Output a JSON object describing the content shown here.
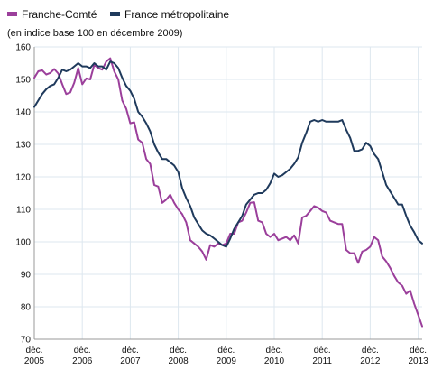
{
  "chart_data": {
    "type": "line",
    "subtitle": "(en indice base 100 en décembre 2009)",
    "x_range": [
      2005.917,
      2013.5
    ],
    "ylim": [
      70,
      160
    ],
    "y_ticks": [
      70,
      80,
      90,
      100,
      110,
      120,
      130,
      140,
      150,
      160
    ],
    "x_ticks": [
      {
        "value": 2005.917,
        "line1": "déc.",
        "line2": "2005"
      },
      {
        "value": 2006.917,
        "line1": "déc.",
        "line2": "2006"
      },
      {
        "value": 2007.917,
        "line1": "déc.",
        "line2": "2007"
      },
      {
        "value": 2008.917,
        "line1": "déc.",
        "line2": "2008"
      },
      {
        "value": 2009.917,
        "line1": "déc.",
        "line2": "2009"
      },
      {
        "value": 2010.917,
        "line1": "déc.",
        "line2": "2010"
      },
      {
        "value": 2011.917,
        "line1": "déc.",
        "line2": "2011"
      },
      {
        "value": 2012.917,
        "line1": "déc.",
        "line2": "2012"
      },
      {
        "value": 2013.917,
        "line1": "déc.",
        "line2": "2013"
      }
    ],
    "grid": true,
    "legend_position": "top-left",
    "series": [
      {
        "name": "Franche-Comté",
        "color": "#9b3f9b",
        "points": [
          [
            2005.917,
            150.5
          ],
          [
            2006.0,
            152.5
          ],
          [
            2006.083,
            152.8
          ],
          [
            2006.167,
            151.5
          ],
          [
            2006.25,
            152.0
          ],
          [
            2006.333,
            153.2
          ],
          [
            2006.417,
            151.8
          ],
          [
            2006.5,
            148.5
          ],
          [
            2006.583,
            145.5
          ],
          [
            2006.667,
            146.0
          ],
          [
            2006.75,
            149.0
          ],
          [
            2006.833,
            153.5
          ],
          [
            2006.917,
            148.5
          ],
          [
            2007.0,
            150.3
          ],
          [
            2007.083,
            150.0
          ],
          [
            2007.167,
            154.5
          ],
          [
            2007.25,
            153.5
          ],
          [
            2007.333,
            153.0
          ],
          [
            2007.417,
            155.5
          ],
          [
            2007.5,
            156.5
          ],
          [
            2007.583,
            152.5
          ],
          [
            2007.667,
            150.0
          ],
          [
            2007.75,
            143.5
          ],
          [
            2007.833,
            141.0
          ],
          [
            2007.917,
            136.5
          ],
          [
            2008.0,
            136.8
          ],
          [
            2008.083,
            131.5
          ],
          [
            2008.167,
            130.5
          ],
          [
            2008.25,
            125.5
          ],
          [
            2008.333,
            124.0
          ],
          [
            2008.417,
            117.5
          ],
          [
            2008.5,
            117.0
          ],
          [
            2008.583,
            112.0
          ],
          [
            2008.667,
            113.0
          ],
          [
            2008.75,
            114.5
          ],
          [
            2008.833,
            112.0
          ],
          [
            2008.917,
            110.0
          ],
          [
            2009.0,
            108.5
          ],
          [
            2009.083,
            106.0
          ],
          [
            2009.167,
            100.5
          ],
          [
            2009.25,
            99.5
          ],
          [
            2009.333,
            98.5
          ],
          [
            2009.417,
            97.0
          ],
          [
            2009.5,
            94.5
          ],
          [
            2009.583,
            99.0
          ],
          [
            2009.667,
            98.5
          ],
          [
            2009.75,
            99.5
          ],
          [
            2009.833,
            99.0
          ],
          [
            2009.917,
            99.5
          ],
          [
            2010.0,
            102.5
          ],
          [
            2010.083,
            102.5
          ],
          [
            2010.167,
            106.0
          ],
          [
            2010.25,
            106.5
          ],
          [
            2010.333,
            109.0
          ],
          [
            2010.417,
            112.0
          ],
          [
            2010.5,
            112.2
          ],
          [
            2010.583,
            106.5
          ],
          [
            2010.667,
            106.0
          ],
          [
            2010.75,
            102.5
          ],
          [
            2010.833,
            101.5
          ],
          [
            2010.917,
            102.5
          ],
          [
            2011.0,
            100.5
          ],
          [
            2011.083,
            101.0
          ],
          [
            2011.167,
            101.5
          ],
          [
            2011.25,
            100.5
          ],
          [
            2011.333,
            102.0
          ],
          [
            2011.417,
            99.5
          ],
          [
            2011.5,
            107.5
          ],
          [
            2011.583,
            108.0
          ],
          [
            2011.667,
            109.5
          ],
          [
            2011.75,
            111.0
          ],
          [
            2011.833,
            110.5
          ],
          [
            2011.917,
            109.5
          ],
          [
            2012.0,
            109.0
          ],
          [
            2012.083,
            106.5
          ],
          [
            2012.167,
            106.0
          ],
          [
            2012.25,
            105.5
          ],
          [
            2012.333,
            105.5
          ],
          [
            2012.417,
            97.5
          ],
          [
            2012.5,
            96.5
          ],
          [
            2012.583,
            96.5
          ],
          [
            2012.667,
            93.5
          ],
          [
            2012.75,
            97.0
          ],
          [
            2012.833,
            97.5
          ],
          [
            2012.917,
            98.5
          ],
          [
            2013.0,
            101.5
          ],
          [
            2013.083,
            100.5
          ],
          [
            2013.167,
            95.5
          ],
          [
            2013.25,
            94.0
          ],
          [
            2013.333,
            92.0
          ],
          [
            2013.417,
            89.5
          ],
          [
            2013.5,
            87.5
          ],
          [
            2013.583,
            86.5
          ],
          [
            2013.667,
            84.0
          ],
          [
            2013.75,
            85.0
          ],
          [
            2013.833,
            81.0
          ],
          [
            2013.917,
            77.5
          ],
          [
            2014.0,
            74.0
          ]
        ]
      },
      {
        "name": "France métropolitaine",
        "color": "#1f3a5c",
        "points": [
          [
            2005.917,
            141.5
          ],
          [
            2006.0,
            143.5
          ],
          [
            2006.083,
            145.5
          ],
          [
            2006.167,
            147.0
          ],
          [
            2006.25,
            148.0
          ],
          [
            2006.333,
            148.5
          ],
          [
            2006.417,
            150.5
          ],
          [
            2006.5,
            153.0
          ],
          [
            2006.583,
            152.5
          ],
          [
            2006.667,
            153.0
          ],
          [
            2006.75,
            154.0
          ],
          [
            2006.833,
            155.0
          ],
          [
            2006.917,
            154.0
          ],
          [
            2007.0,
            154.0
          ],
          [
            2007.083,
            153.5
          ],
          [
            2007.167,
            155.0
          ],
          [
            2007.25,
            154.0
          ],
          [
            2007.333,
            154.0
          ],
          [
            2007.417,
            153.0
          ],
          [
            2007.5,
            155.5
          ],
          [
            2007.583,
            155.0
          ],
          [
            2007.667,
            153.5
          ],
          [
            2007.75,
            150.5
          ],
          [
            2007.833,
            148.0
          ],
          [
            2007.917,
            146.5
          ],
          [
            2008.0,
            144.0
          ],
          [
            2008.083,
            140.0
          ],
          [
            2008.167,
            138.5
          ],
          [
            2008.25,
            136.5
          ],
          [
            2008.333,
            134.0
          ],
          [
            2008.417,
            130.0
          ],
          [
            2008.5,
            127.5
          ],
          [
            2008.583,
            125.5
          ],
          [
            2008.667,
            125.5
          ],
          [
            2008.75,
            124.5
          ],
          [
            2008.833,
            123.5
          ],
          [
            2008.917,
            121.5
          ],
          [
            2009.0,
            116.5
          ],
          [
            2009.083,
            113.5
          ],
          [
            2009.167,
            111.0
          ],
          [
            2009.25,
            107.5
          ],
          [
            2009.333,
            105.5
          ],
          [
            2009.417,
            103.5
          ],
          [
            2009.5,
            102.5
          ],
          [
            2009.583,
            102.0
          ],
          [
            2009.667,
            101.0
          ],
          [
            2009.75,
            100.0
          ],
          [
            2009.833,
            99.0
          ],
          [
            2009.917,
            98.5
          ],
          [
            2010.0,
            101.0
          ],
          [
            2010.083,
            104.0
          ],
          [
            2010.167,
            106.0
          ],
          [
            2010.25,
            108.0
          ],
          [
            2010.333,
            111.5
          ],
          [
            2010.417,
            113.0
          ],
          [
            2010.5,
            114.5
          ],
          [
            2010.583,
            115.0
          ],
          [
            2010.667,
            115.0
          ],
          [
            2010.75,
            116.0
          ],
          [
            2010.833,
            118.0
          ],
          [
            2010.917,
            121.0
          ],
          [
            2011.0,
            120.0
          ],
          [
            2011.083,
            120.5
          ],
          [
            2011.167,
            121.5
          ],
          [
            2011.25,
            122.5
          ],
          [
            2011.333,
            124.0
          ],
          [
            2011.417,
            126.0
          ],
          [
            2011.5,
            130.5
          ],
          [
            2011.583,
            133.5
          ],
          [
            2011.667,
            137.0
          ],
          [
            2011.75,
            137.5
          ],
          [
            2011.833,
            137.0
          ],
          [
            2011.917,
            137.5
          ],
          [
            2012.0,
            137.0
          ],
          [
            2012.083,
            137.0
          ],
          [
            2012.167,
            137.0
          ],
          [
            2012.25,
            137.0
          ],
          [
            2012.333,
            137.5
          ],
          [
            2012.417,
            134.5
          ],
          [
            2012.5,
            132.0
          ],
          [
            2012.583,
            128.0
          ],
          [
            2012.667,
            128.0
          ],
          [
            2012.75,
            128.5
          ],
          [
            2012.833,
            130.5
          ],
          [
            2012.917,
            129.5
          ],
          [
            2013.0,
            127.0
          ],
          [
            2013.083,
            125.5
          ],
          [
            2013.167,
            121.5
          ],
          [
            2013.25,
            117.5
          ],
          [
            2013.333,
            115.5
          ],
          [
            2013.417,
            113.5
          ],
          [
            2013.5,
            111.5
          ],
          [
            2013.583,
            111.5
          ],
          [
            2013.667,
            108.0
          ],
          [
            2013.75,
            105.0
          ],
          [
            2013.833,
            103.0
          ],
          [
            2013.917,
            100.5
          ],
          [
            2014.0,
            99.5
          ]
        ]
      }
    ]
  }
}
